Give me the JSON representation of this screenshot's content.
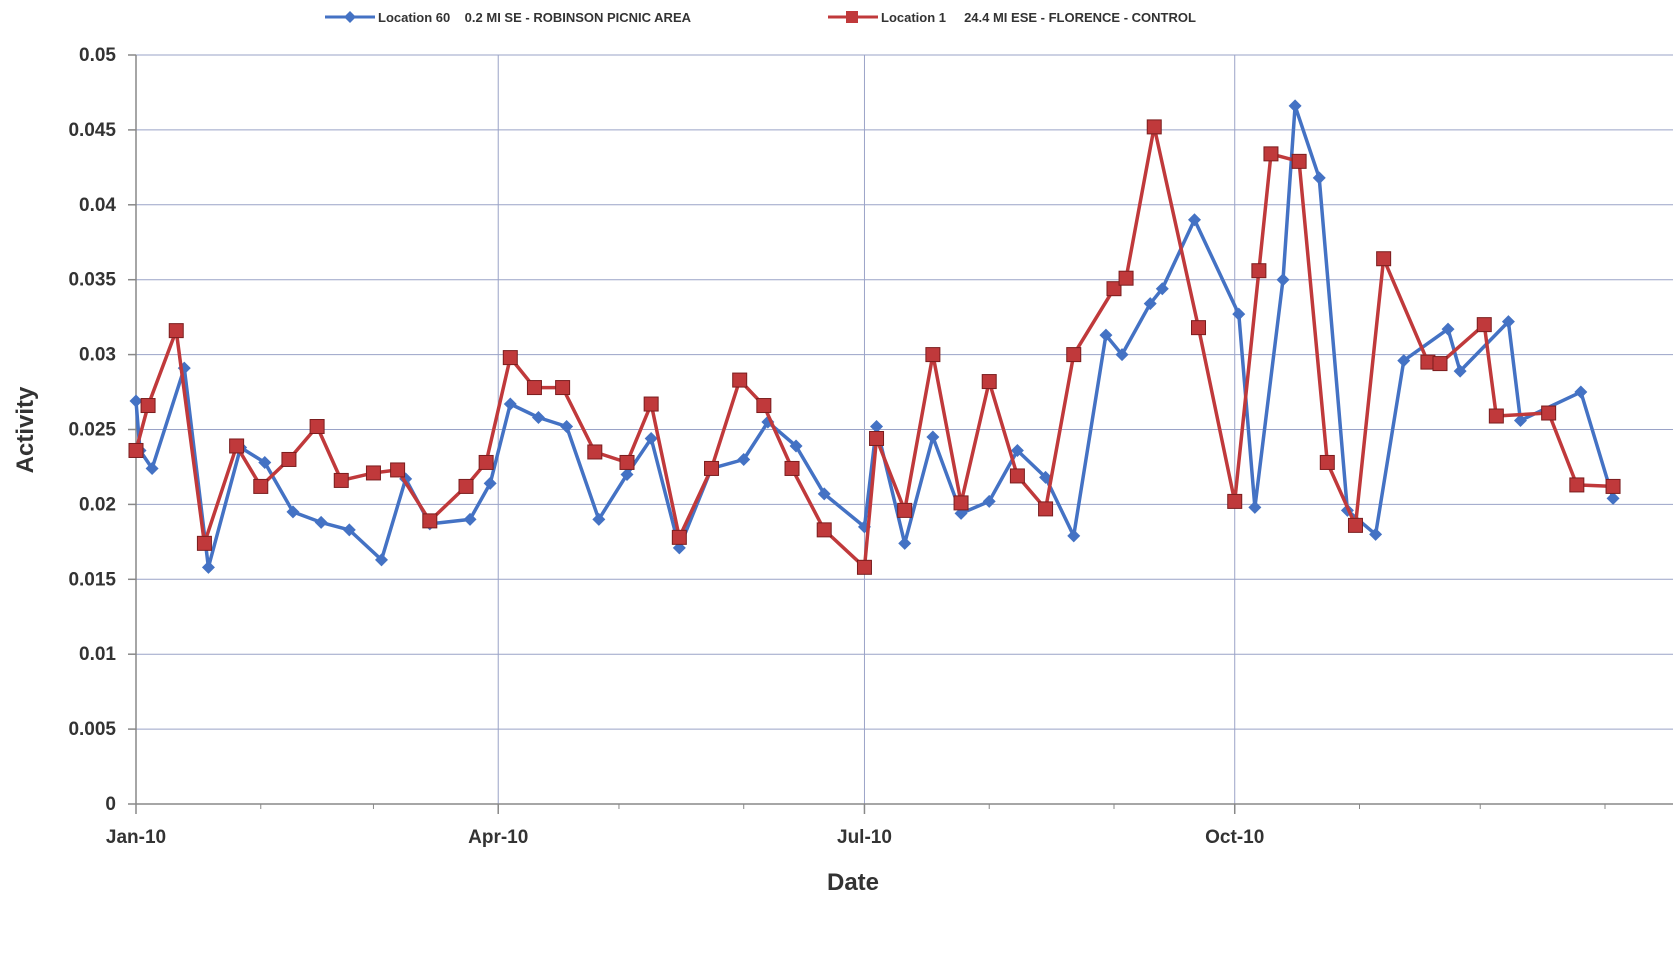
{
  "chart_data": {
    "type": "line",
    "title": "",
    "xlabel": "Date",
    "ylabel": "Activity",
    "x_ticks": [
      "Jan-10",
      "Apr-10",
      "Jul-10",
      "Oct-10"
    ],
    "y_ticks": [
      "0",
      "0.005",
      "0.01",
      "0.015",
      "0.02",
      "0.025",
      "0.03",
      "0.035",
      "0.04",
      "0.045",
      "0.05"
    ],
    "ylim": [
      0,
      0.05
    ],
    "xlim": [
      "2010-01-01",
      "2011-01-04"
    ],
    "grid": true,
    "legend_position": "top",
    "series": [
      {
        "name": "Location 60    0.2 MI SE - ROBINSON PICNIC AREA",
        "color": "#4472C4",
        "marker": "diamond",
        "points": [
          [
            "2010-01-01",
            0.0269
          ],
          [
            "2010-01-02",
            0.0236
          ],
          [
            "2010-01-05",
            0.0224
          ],
          [
            "2010-01-13",
            0.0291
          ],
          [
            "2010-01-19",
            0.0158
          ],
          [
            "2010-01-27",
            0.0238
          ],
          [
            "2010-02-02",
            0.0228
          ],
          [
            "2010-02-09",
            0.0195
          ],
          [
            "2010-02-16",
            0.0188
          ],
          [
            "2010-02-23",
            0.0183
          ],
          [
            "2010-03-03",
            0.0163
          ],
          [
            "2010-03-09",
            0.0217
          ],
          [
            "2010-03-15",
            0.0187
          ],
          [
            "2010-03-25",
            0.019
          ],
          [
            "2010-03-30",
            0.0214
          ],
          [
            "2010-04-04",
            0.0267
          ],
          [
            "2010-04-11",
            0.0258
          ],
          [
            "2010-04-18",
            0.0252
          ],
          [
            "2010-04-26",
            0.019
          ],
          [
            "2010-05-03",
            0.022
          ],
          [
            "2010-05-09",
            0.0244
          ],
          [
            "2010-05-16",
            0.0171
          ],
          [
            "2010-05-24",
            0.0224
          ],
          [
            "2010-06-01",
            0.023
          ],
          [
            "2010-06-07",
            0.0255
          ],
          [
            "2010-06-14",
            0.0239
          ],
          [
            "2010-06-21",
            0.0207
          ],
          [
            "2010-07-01",
            0.0185
          ],
          [
            "2010-07-04",
            0.0252
          ],
          [
            "2010-07-11",
            0.0174
          ],
          [
            "2010-07-18",
            0.0245
          ],
          [
            "2010-07-25",
            0.0194
          ],
          [
            "2010-08-01",
            0.0202
          ],
          [
            "2010-08-08",
            0.0236
          ],
          [
            "2010-08-15",
            0.0218
          ],
          [
            "2010-08-22",
            0.0179
          ],
          [
            "2010-08-30",
            0.0313
          ],
          [
            "2010-09-03",
            0.03
          ],
          [
            "2010-09-10",
            0.0334
          ],
          [
            "2010-09-13",
            0.0344
          ],
          [
            "2010-09-21",
            0.039
          ],
          [
            "2010-10-02",
            0.0327
          ],
          [
            "2010-10-06",
            0.0198
          ],
          [
            "2010-10-13",
            0.035
          ],
          [
            "2010-10-16",
            0.0466
          ],
          [
            "2010-10-22",
            0.0418
          ],
          [
            "2010-10-29",
            0.0196
          ],
          [
            "2010-11-05",
            0.018
          ],
          [
            "2010-11-12",
            0.0296
          ],
          [
            "2010-11-23",
            0.0317
          ],
          [
            "2010-11-26",
            0.0289
          ],
          [
            "2010-12-08",
            0.0322
          ],
          [
            "2010-12-11",
            0.0256
          ],
          [
            "2010-12-26",
            0.0275
          ],
          [
            "2011-01-03",
            0.0204
          ]
        ]
      },
      {
        "name": "Location 1     24.4 MI ESE - FLORENCE - CONTROL",
        "color": "#C0393B",
        "marker": "square",
        "points": [
          [
            "2010-01-01",
            0.0236
          ],
          [
            "2010-01-04",
            0.0266
          ],
          [
            "2010-01-11",
            0.0316
          ],
          [
            "2010-01-18",
            0.0174
          ],
          [
            "2010-01-26",
            0.0239
          ],
          [
            "2010-02-01",
            0.0212
          ],
          [
            "2010-02-08",
            0.023
          ],
          [
            "2010-02-15",
            0.0252
          ],
          [
            "2010-02-21",
            0.0216
          ],
          [
            "2010-03-01",
            0.0221
          ],
          [
            "2010-03-07",
            0.0223
          ],
          [
            "2010-03-15",
            0.0189
          ],
          [
            "2010-03-24",
            0.0212
          ],
          [
            "2010-03-29",
            0.0228
          ],
          [
            "2010-04-04",
            0.0298
          ],
          [
            "2010-04-10",
            0.0278
          ],
          [
            "2010-04-17",
            0.0278
          ],
          [
            "2010-04-25",
            0.0235
          ],
          [
            "2010-05-03",
            0.0228
          ],
          [
            "2010-05-09",
            0.0267
          ],
          [
            "2010-05-16",
            0.0178
          ],
          [
            "2010-05-24",
            0.0224
          ],
          [
            "2010-05-31",
            0.0283
          ],
          [
            "2010-06-06",
            0.0266
          ],
          [
            "2010-06-13",
            0.0224
          ],
          [
            "2010-06-21",
            0.0183
          ],
          [
            "2010-07-01",
            0.0158
          ],
          [
            "2010-07-04",
            0.0244
          ],
          [
            "2010-07-11",
            0.0196
          ],
          [
            "2010-07-18",
            0.03
          ],
          [
            "2010-07-25",
            0.0201
          ],
          [
            "2010-08-01",
            0.0282
          ],
          [
            "2010-08-08",
            0.0219
          ],
          [
            "2010-08-15",
            0.0197
          ],
          [
            "2010-08-22",
            0.03
          ],
          [
            "2010-09-01",
            0.0344
          ],
          [
            "2010-09-04",
            0.0351
          ],
          [
            "2010-09-11",
            0.0452
          ],
          [
            "2010-09-22",
            0.0318
          ],
          [
            "2010-10-01",
            0.0202
          ],
          [
            "2010-10-07",
            0.0356
          ],
          [
            "2010-10-10",
            0.0434
          ],
          [
            "2010-10-17",
            0.0429
          ],
          [
            "2010-10-24",
            0.0228
          ],
          [
            "2010-10-31",
            0.0186
          ],
          [
            "2010-11-07",
            0.0364
          ],
          [
            "2010-11-18",
            0.0295
          ],
          [
            "2010-11-21",
            0.0294
          ],
          [
            "2010-12-02",
            0.032
          ],
          [
            "2010-12-05",
            0.0259
          ],
          [
            "2010-12-18",
            0.0261
          ],
          [
            "2010-12-25",
            0.0213
          ],
          [
            "2011-01-03",
            0.0212
          ]
        ]
      }
    ]
  }
}
